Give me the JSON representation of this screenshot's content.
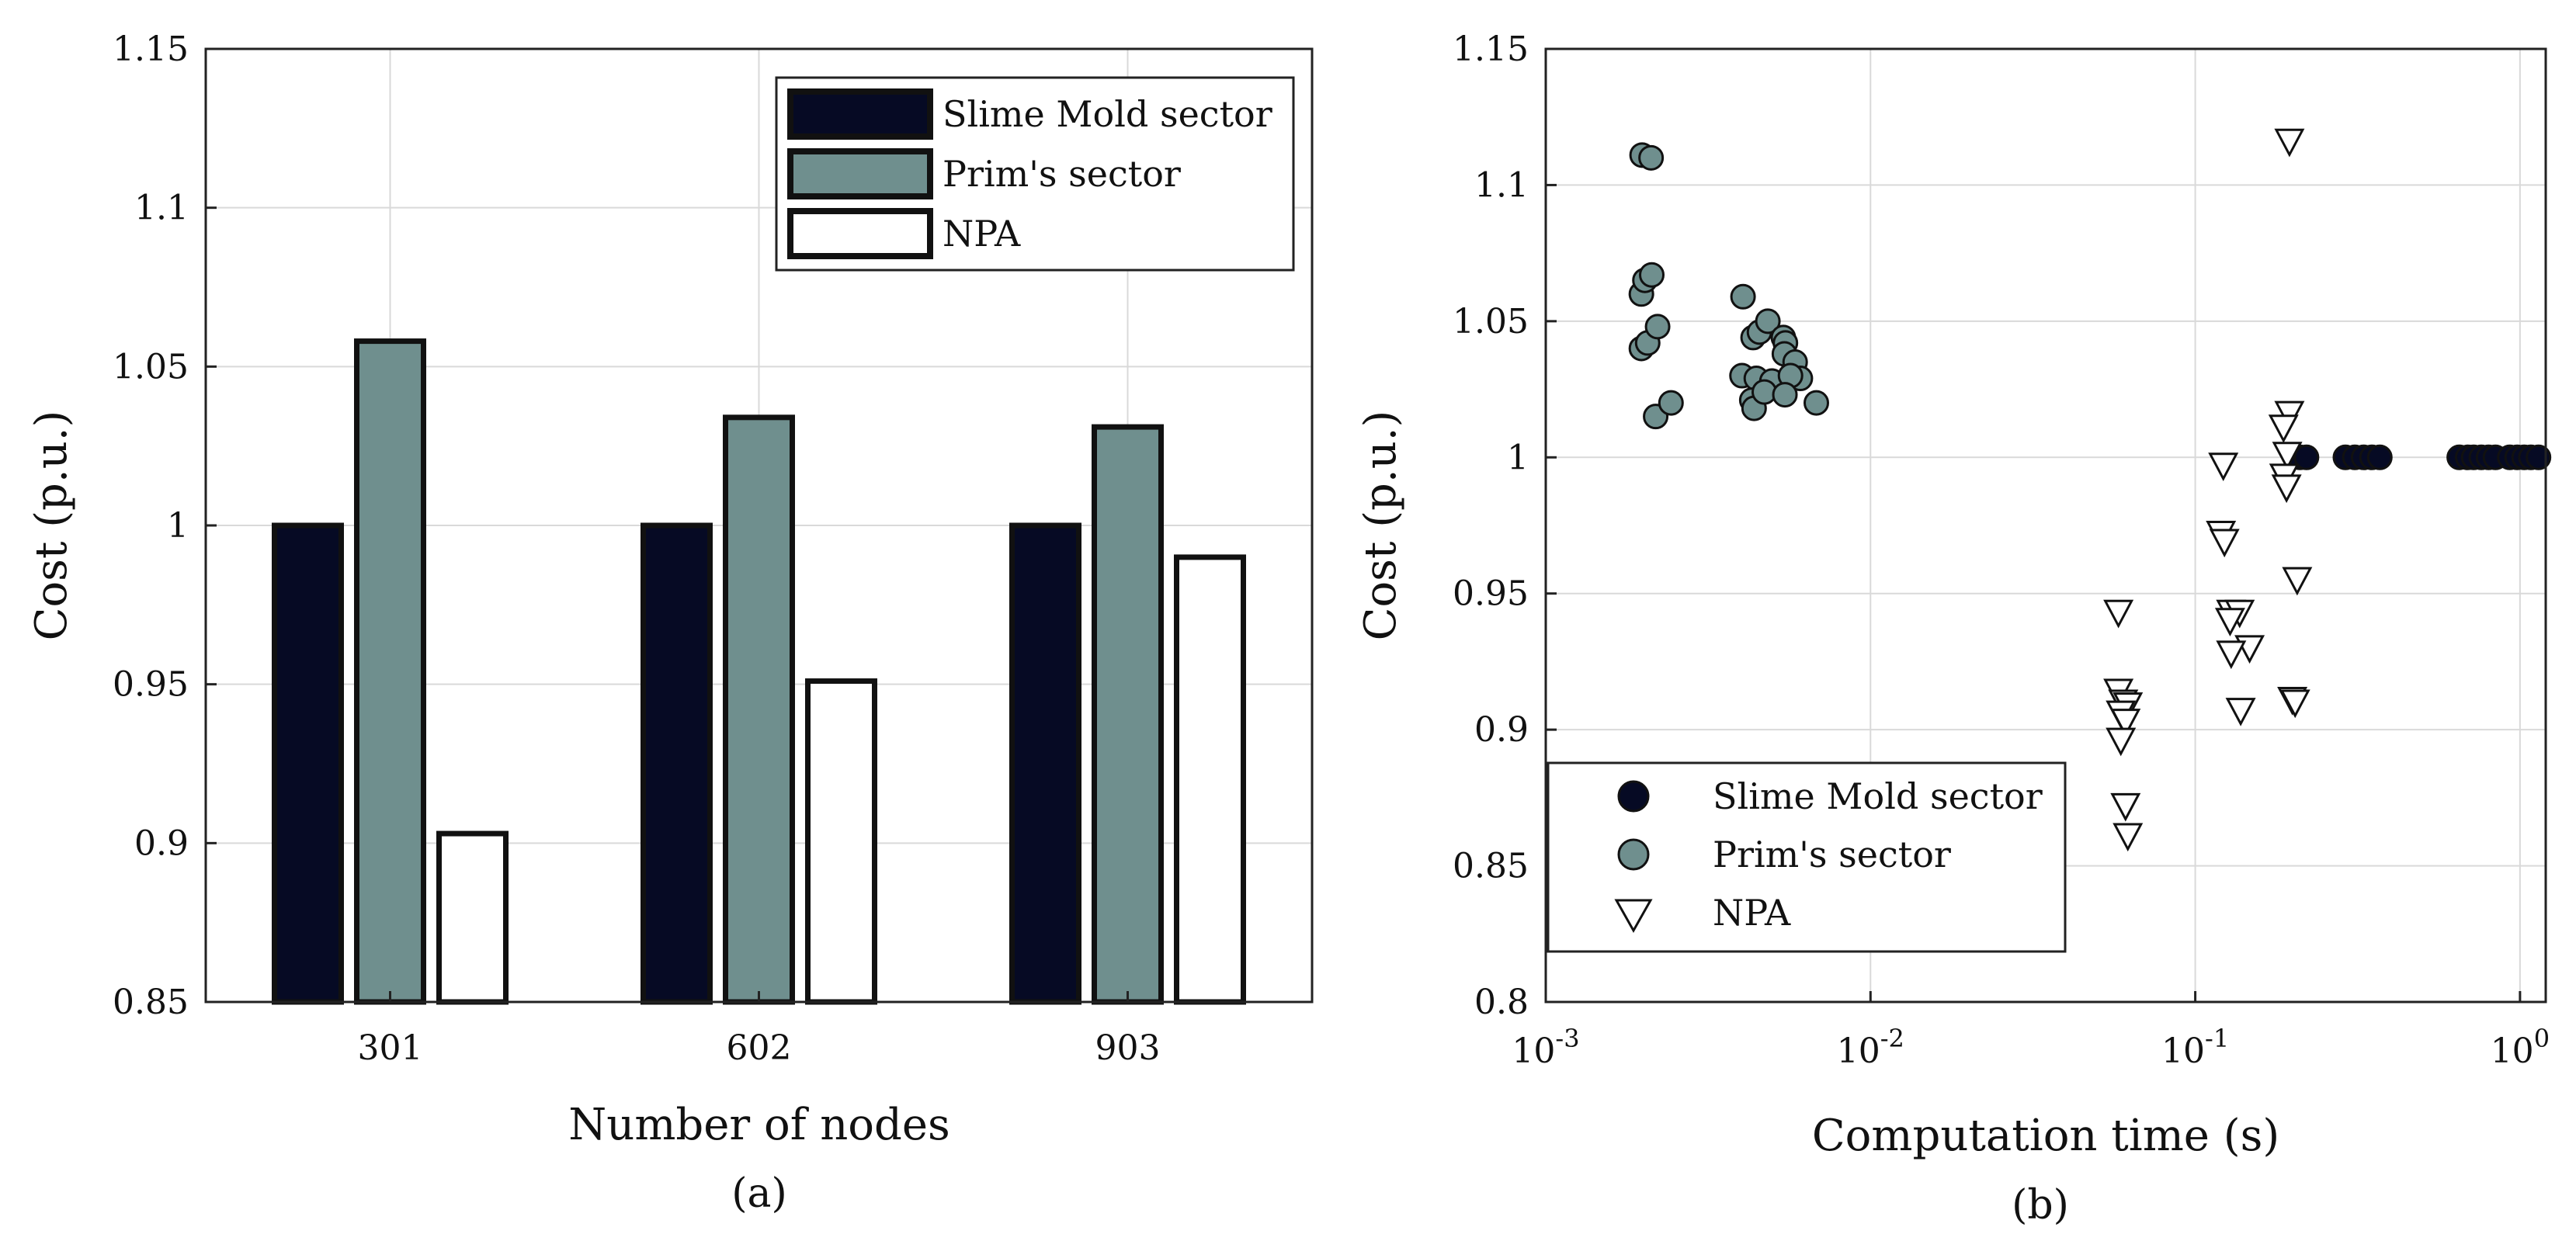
{
  "colors": {
    "slime": "#060a24",
    "prim": "#6f8f8e",
    "npa": "#ffffff",
    "edge": "#111111"
  },
  "chart_data": [
    {
      "type": "bar",
      "panel_label": "(a)",
      "title": "",
      "xlabel": "Number of nodes",
      "ylabel": "Cost (p.u.)",
      "categories": [
        "301",
        "602",
        "903"
      ],
      "ylim": [
        0.85,
        1.15
      ],
      "yticks": [
        "0.85",
        "0.9",
        "0.95",
        "1",
        "1.05",
        "1.1",
        "1.15"
      ],
      "grid": true,
      "legend_position": "top-right",
      "series": [
        {
          "name": "Slime Mold sector",
          "values": [
            1.0,
            1.0,
            1.0
          ]
        },
        {
          "name": "Prim's sector",
          "values": [
            1.058,
            1.034,
            1.031
          ]
        },
        {
          "name": "NPA",
          "values": [
            0.903,
            0.951,
            0.99
          ]
        }
      ]
    },
    {
      "type": "scatter",
      "panel_label": "(b)",
      "title": "",
      "xlabel": "Computation time (s)",
      "ylabel": "Cost (p.u.)",
      "xscale": "log",
      "xlim": [
        0.001,
        1.2
      ],
      "ylim": [
        0.8,
        1.15
      ],
      "xticks": [
        {
          "base": "10",
          "exp": "-3"
        },
        {
          "base": "10",
          "exp": "-2"
        },
        {
          "base": "10",
          "exp": "-1"
        },
        {
          "base": "10",
          "exp": "0"
        }
      ],
      "yticks": [
        "0.8",
        "0.85",
        "0.9",
        "0.95",
        "1",
        "1.05",
        "1.1",
        "1.15"
      ],
      "grid": true,
      "legend_position": "bottom-left",
      "series": [
        {
          "name": "Slime Mold sector",
          "marker": "circle-filled",
          "points": [
            [
              0.21,
              1.0
            ],
            [
              0.22,
              1.0
            ],
            [
              0.29,
              1.0
            ],
            [
              0.31,
              1.0
            ],
            [
              0.33,
              1.0
            ],
            [
              0.35,
              1.0
            ],
            [
              0.37,
              1.0
            ],
            [
              0.65,
              1.0
            ],
            [
              0.69,
              1.0
            ],
            [
              0.72,
              1.0
            ],
            [
              0.76,
              1.0
            ],
            [
              0.8,
              1.0
            ],
            [
              0.84,
              1.0
            ],
            [
              0.93,
              1.0
            ],
            [
              0.98,
              1.0
            ],
            [
              1.03,
              1.0
            ],
            [
              1.08,
              1.0
            ],
            [
              1.14,
              1.0
            ]
          ]
        },
        {
          "name": "Prim's sector",
          "marker": "circle-gray",
          "points": [
            [
              0.00198,
              1.111
            ],
            [
              0.00211,
              1.11
            ],
            [
              0.00197,
              1.06
            ],
            [
              0.00202,
              1.065
            ],
            [
              0.00212,
              1.067
            ],
            [
              0.00197,
              1.04
            ],
            [
              0.00206,
              1.042
            ],
            [
              0.00221,
              1.048
            ],
            [
              0.00218,
              1.015
            ],
            [
              0.00243,
              1.02
            ],
            [
              0.00405,
              1.059
            ],
            [
              0.00435,
              1.044
            ],
            [
              0.00455,
              1.046
            ],
            [
              0.00483,
              1.05
            ],
            [
              0.00539,
              1.044
            ],
            [
              0.00547,
              1.042
            ],
            [
              0.00402,
              1.03
            ],
            [
              0.00445,
              1.029
            ],
            [
              0.00497,
              1.028
            ],
            [
              0.00543,
              1.038
            ],
            [
              0.00586,
              1.035
            ],
            [
              0.00608,
              1.029
            ],
            [
              0.00567,
              1.03
            ],
            [
              0.00431,
              1.021
            ],
            [
              0.00438,
              1.018
            ],
            [
              0.00471,
              1.024
            ],
            [
              0.00545,
              1.023
            ],
            [
              0.00681,
              1.02
            ]
          ]
        },
        {
          "name": "NPA",
          "marker": "triangle-down-open",
          "points": [
            [
              0.058,
              0.943
            ],
            [
              0.058,
              0.914
            ],
            [
              0.06,
              0.91
            ],
            [
              0.062,
              0.909
            ],
            [
              0.059,
              0.906
            ],
            [
              0.061,
              0.903
            ],
            [
              0.059,
              0.896
            ],
            [
              0.061,
              0.872
            ],
            [
              0.062,
              0.861
            ],
            [
              0.122,
              0.997
            ],
            [
              0.12,
              0.972
            ],
            [
              0.123,
              0.969
            ],
            [
              0.129,
              0.943
            ],
            [
              0.137,
              0.943
            ],
            [
              0.128,
              0.94
            ],
            [
              0.147,
              0.93
            ],
            [
              0.129,
              0.928
            ],
            [
              0.138,
              0.907
            ],
            [
              0.195,
              1.116
            ],
            [
              0.195,
              1.016
            ],
            [
              0.187,
              1.011
            ],
            [
              0.192,
              1.001
            ],
            [
              0.188,
              0.993
            ],
            [
              0.191,
              0.989
            ],
            [
              0.206,
              0.955
            ],
            [
              0.199,
              0.911
            ],
            [
              0.203,
              0.91
            ]
          ]
        }
      ]
    }
  ]
}
